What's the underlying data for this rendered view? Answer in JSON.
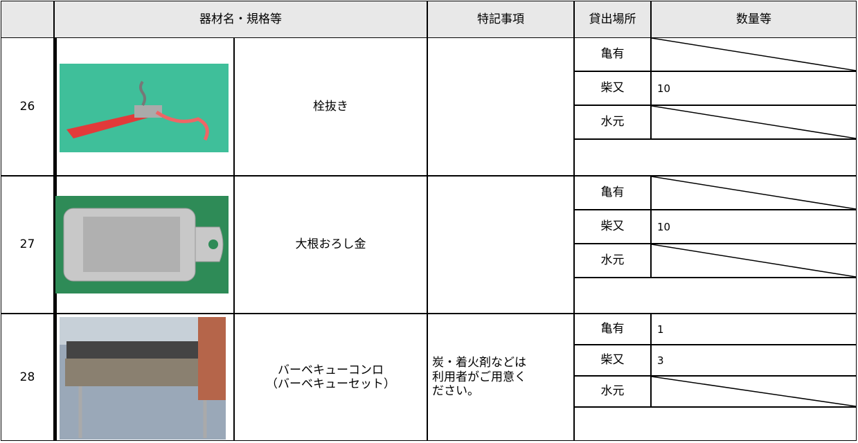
{
  "header": {
    "item": "器材名・規格等",
    "note": "特記事項",
    "place": "貸出場所",
    "quantity": "数量等"
  },
  "rows": [
    {
      "number": "26",
      "name": [
        "栓抜き"
      ],
      "locations": [
        {
          "place": "亀有"
        },
        {
          "place": "柴又",
          "quantity": "10"
        },
        {
          "place": "水元"
        }
      ]
    },
    {
      "number": "27",
      "name": [
        "大根おろし金"
      ],
      "locations": [
        {
          "place": "亀有"
        },
        {
          "place": "柴又",
          "quantity": "10"
        },
        {
          "place": "水元"
        }
      ]
    },
    {
      "number": "28",
      "name": [
        "バーベキューコンロ",
        "（バーベキューセット）"
      ],
      "note": [
        "炭・着火剤などは",
        "利用者がご用意く",
        "ださい。"
      ],
      "locations": [
        {
          "place": "亀有",
          "quantity": "1"
        },
        {
          "place": "柴又",
          "quantity": "3"
        },
        {
          "place": "水元"
        }
      ]
    }
  ]
}
